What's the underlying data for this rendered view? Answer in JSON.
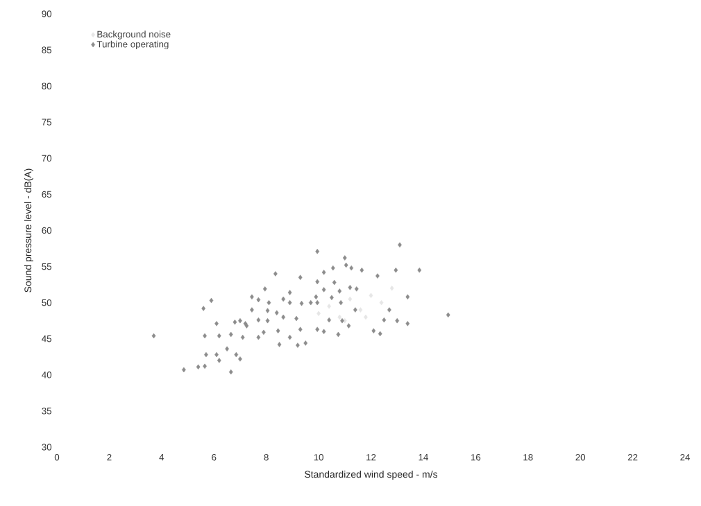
{
  "chart_data": {
    "type": "scatter",
    "xlabel": "Standardized wind speed - m/s",
    "ylabel": "Sound pressure level - dB(A)",
    "xlim": [
      0,
      24
    ],
    "xticks": [
      0,
      2,
      4,
      6,
      8,
      10,
      12,
      14,
      16,
      18,
      20,
      22,
      24
    ],
    "ylim": [
      30,
      90
    ],
    "yticks": [
      30,
      35,
      40,
      45,
      50,
      55,
      60,
      65,
      70,
      75,
      80,
      85,
      90
    ],
    "legend": "top left",
    "marker": "diamond",
    "grid": false,
    "series": [
      {
        "name": "Background noise",
        "color": "#e6e6e6",
        "x": [
          10.0,
          10.4,
          10.8,
          11.2,
          11.6,
          12.0,
          12.4,
          12.8,
          11.0,
          11.8
        ],
        "values": [
          48.5,
          49.5,
          48.0,
          50.5,
          49.0,
          51.0,
          50.0,
          52.0,
          47.5,
          48.0
        ]
      },
      {
        "name": "Turbine operating",
        "color": "#8c8c8c",
        "x": [
          3.7,
          4.85,
          5.4,
          5.65,
          5.65,
          5.6,
          5.9,
          5.7,
          6.1,
          6.2,
          6.1,
          6.2,
          6.5,
          6.65,
          6.8,
          6.85,
          7.0,
          7.2,
          6.65,
          7.1,
          7.0,
          7.25,
          7.45,
          7.7,
          7.95,
          7.45,
          8.1,
          8.05,
          7.7,
          8.05,
          7.9,
          7.7,
          8.35,
          8.4,
          8.45,
          8.5,
          8.65,
          8.65,
          8.9,
          8.9,
          8.9,
          9.15,
          9.2,
          9.3,
          9.3,
          9.35,
          9.5,
          9.7,
          9.9,
          9.95,
          9.95,
          9.95,
          9.95,
          10.2,
          10.2,
          10.2,
          10.4,
          10.5,
          10.55,
          10.6,
          10.75,
          10.8,
          10.85,
          10.9,
          11.0,
          11.05,
          11.15,
          11.2,
          11.25,
          11.4,
          11.45,
          11.65,
          12.1,
          12.25,
          12.35,
          12.5,
          12.7,
          12.95,
          13.0,
          13.1,
          13.4,
          13.4,
          13.85,
          14.95
        ],
        "values": [
          45.4,
          40.7,
          41.1,
          41.2,
          45.4,
          49.2,
          50.3,
          42.8,
          42.8,
          42.0,
          47.1,
          45.4,
          43.6,
          40.4,
          47.3,
          42.8,
          42.2,
          47.1,
          45.6,
          45.2,
          47.5,
          46.8,
          50.8,
          50.4,
          51.9,
          49.0,
          50.0,
          48.9,
          47.6,
          47.5,
          45.9,
          45.2,
          54.0,
          48.6,
          46.1,
          44.2,
          50.5,
          48.0,
          50.0,
          51.4,
          45.2,
          47.8,
          44.1,
          53.5,
          46.3,
          49.9,
          44.4,
          50.0,
          50.8,
          52.9,
          57.1,
          46.3,
          50.0,
          54.2,
          51.8,
          46.0,
          47.6,
          50.7,
          54.8,
          52.8,
          45.6,
          51.6,
          50.0,
          47.5,
          56.2,
          55.2,
          46.8,
          52.1,
          54.8,
          49.0,
          51.9,
          54.5,
          46.1,
          53.7,
          45.7,
          47.6,
          49.0,
          54.5,
          47.5,
          58.0,
          50.8,
          47.1,
          54.5,
          48.3
        ]
      }
    ]
  }
}
